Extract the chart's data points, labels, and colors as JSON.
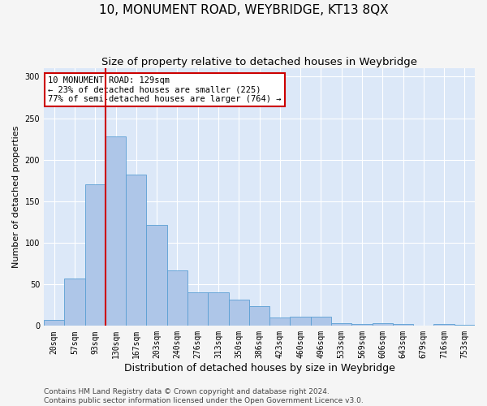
{
  "title": "10, MONUMENT ROAD, WEYBRIDGE, KT13 8QX",
  "subtitle": "Size of property relative to detached houses in Weybridge",
  "xlabel": "Distribution of detached houses by size in Weybridge",
  "ylabel": "Number of detached properties",
  "bar_color": "#aec6e8",
  "bar_edge_color": "#5a9fd4",
  "background_color": "#dce8f8",
  "grid_color": "#ffffff",
  "categories": [
    "20sqm",
    "57sqm",
    "93sqm",
    "130sqm",
    "167sqm",
    "203sqm",
    "240sqm",
    "276sqm",
    "313sqm",
    "350sqm",
    "386sqm",
    "423sqm",
    "460sqm",
    "496sqm",
    "533sqm",
    "569sqm",
    "606sqm",
    "643sqm",
    "679sqm",
    "716sqm",
    "753sqm"
  ],
  "values": [
    7,
    57,
    170,
    228,
    182,
    122,
    67,
    40,
    40,
    32,
    24,
    10,
    11,
    11,
    3,
    2,
    3,
    2,
    0,
    2,
    1
  ],
  "property_bin_index": 3,
  "annotation_text": "10 MONUMENT ROAD: 129sqm\n← 23% of detached houses are smaller (225)\n77% of semi-detached houses are larger (764) →",
  "annotation_box_color": "#ffffff",
  "annotation_box_edge_color": "#cc0000",
  "vline_color": "#cc0000",
  "ylim": [
    0,
    310
  ],
  "yticks": [
    0,
    50,
    100,
    150,
    200,
    250,
    300
  ],
  "footer_text": "Contains HM Land Registry data © Crown copyright and database right 2024.\nContains public sector information licensed under the Open Government Licence v3.0.",
  "title_fontsize": 11,
  "subtitle_fontsize": 9.5,
  "ylabel_fontsize": 8,
  "xlabel_fontsize": 9,
  "tick_fontsize": 7,
  "annotation_fontsize": 7.5,
  "footer_fontsize": 6.5
}
